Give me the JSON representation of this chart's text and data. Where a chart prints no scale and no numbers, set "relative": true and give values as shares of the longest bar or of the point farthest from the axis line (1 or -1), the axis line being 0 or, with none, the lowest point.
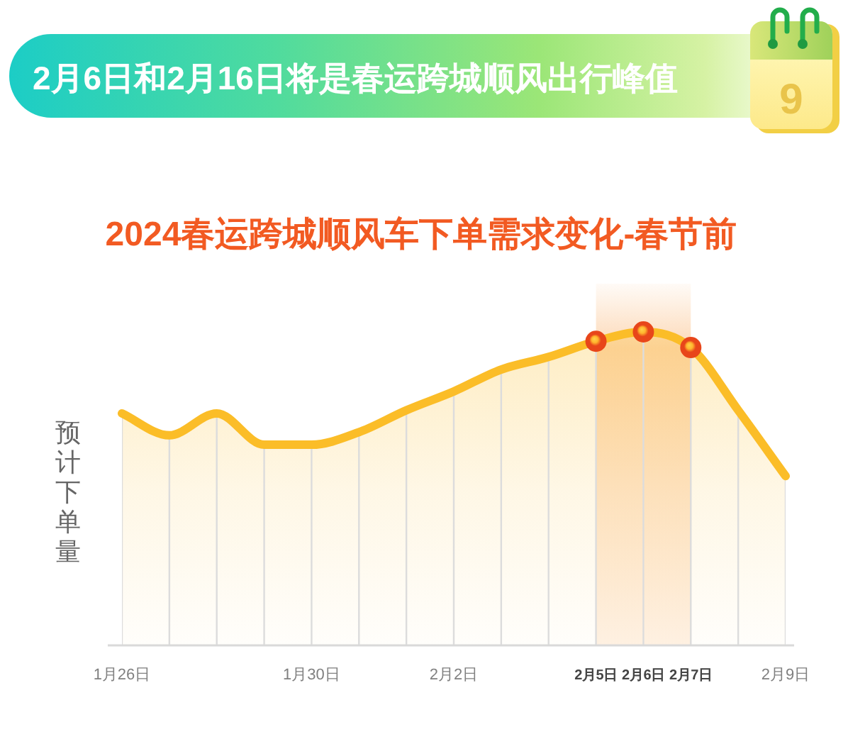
{
  "chart_data": {
    "type": "area",
    "title": "2月6日和2月16日将是春运跨城顺风出行峰值",
    "subtitle": "2024春运跨城顺风车下单需求变化-春节前",
    "ylabel": "预计下单量",
    "annotations": [
      "9"
    ],
    "relative": true,
    "grid": "x",
    "categories": [
      "1月26日",
      null,
      null,
      null,
      "1月30日",
      null,
      null,
      "2月2日",
      null,
      null,
      "2月5日",
      "2月6日",
      "2月7日",
      null,
      "2月9日"
    ],
    "series": [
      {
        "color": "#fbbd28",
        "values": [
          0.74,
          0.67,
          0.74,
          0.64,
          0.64,
          0.68,
          0.75,
          0.81,
          0.88,
          0.92,
          0.97,
          1,
          0.95,
          0.75,
          0.54
        ]
      },
      {
        "type": "scatter",
        "color": "#e8461a",
        "marker": "circle",
        "x": [
          "2月5日",
          "2月6日",
          "2月7日"
        ],
        "values": [
          0.97,
          1,
          0.95
        ]
      }
    ],
    "bands": [
      {
        "axis": "x",
        "from": "2月5日",
        "to": "2月7日",
        "color": "#fcd2aa"
      }
    ]
  }
}
